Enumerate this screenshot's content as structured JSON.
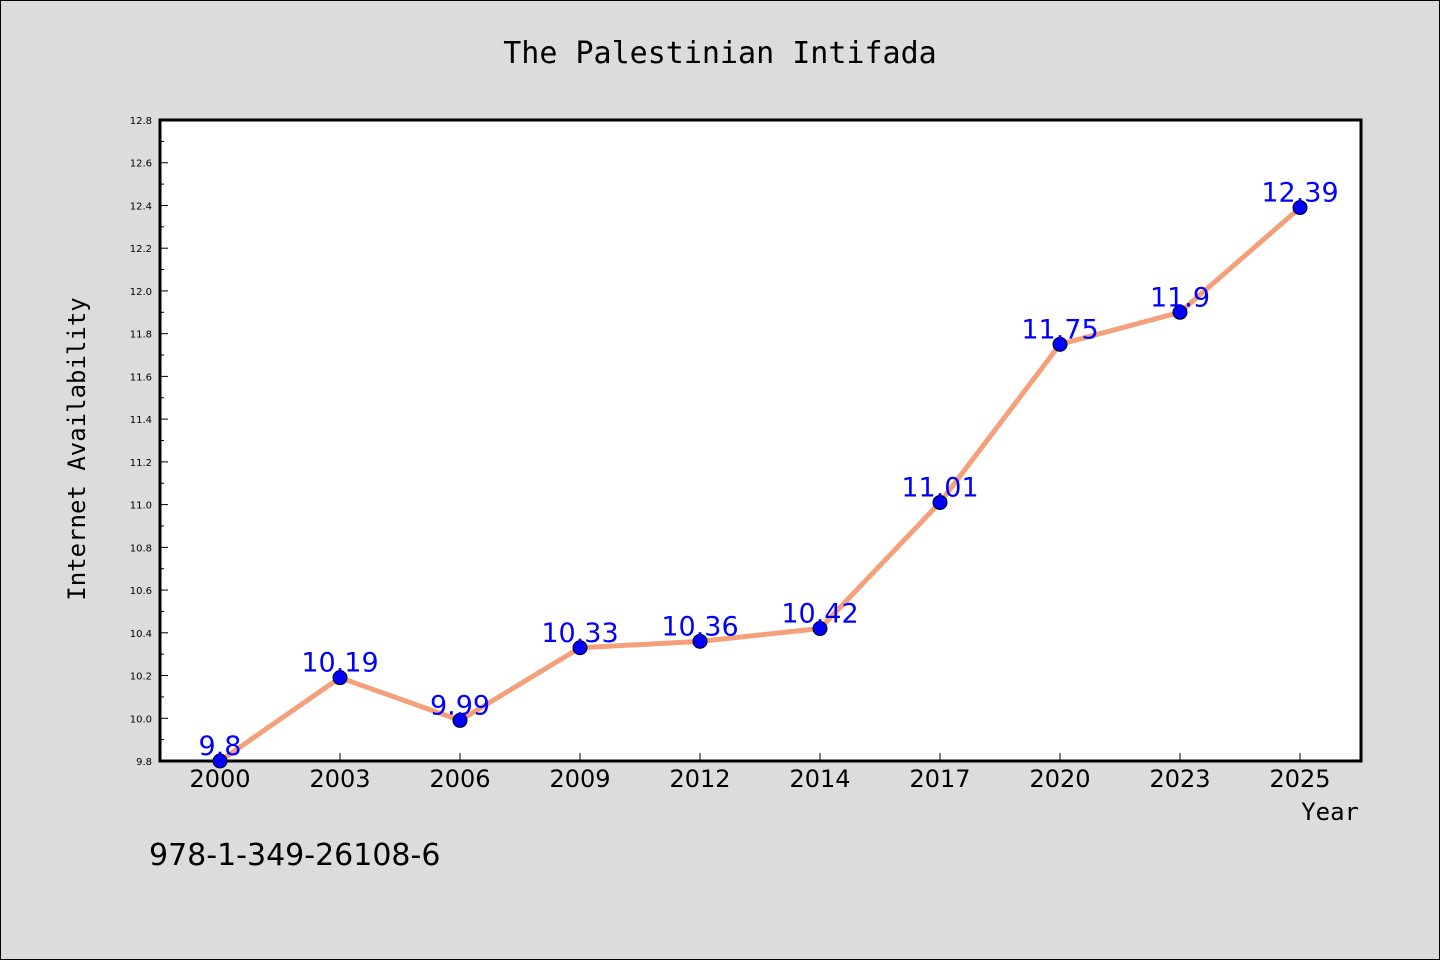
{
  "chart_data": {
    "type": "line",
    "title": "The Palestinian Intifada",
    "xlabel": "Year",
    "ylabel": "Internet Availability",
    "categories": [
      "2000",
      "2003",
      "2006",
      "2009",
      "2012",
      "2014",
      "2017",
      "2020",
      "2023",
      "2025"
    ],
    "values": [
      9.8,
      10.19,
      9.99,
      10.33,
      10.36,
      10.42,
      11.01,
      11.75,
      11.9,
      12.39
    ],
    "data_labels": [
      "9.8",
      "10.19",
      "9.99",
      "10.33",
      "10.36",
      "10.42",
      "11.01",
      "11.75",
      "11.9",
      "12.39"
    ],
    "ylim": [
      9.8,
      12.8
    ],
    "yticks": [
      "9.8",
      "10.0",
      "10.2",
      "10.4",
      "10.6",
      "10.8",
      "11.0",
      "11.2",
      "11.4",
      "11.6",
      "11.8",
      "12.0",
      "12.2",
      "12.4",
      "12.6",
      "12.8"
    ],
    "grid": false,
    "line_color": "#f4a07a",
    "marker_color": "#0000ff",
    "label_color": "#0000ff",
    "plot_background": "#ffffff",
    "figure_background": "#dcdcdc"
  },
  "annotation": "978-1-349-26108-6"
}
